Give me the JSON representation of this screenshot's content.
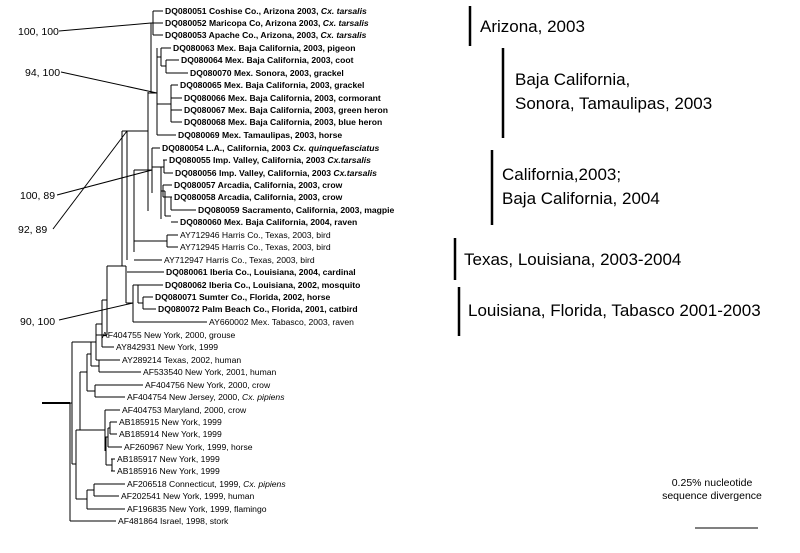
{
  "tips": [
    {
      "label": "DQ080051 Coshise Co., Arizona 2003,",
      "italic": " Cx. tarsalis",
      "bold": true
    },
    {
      "label": "DQ080052 Maricopa Co, Arizona 2003,",
      "italic": " Cx. tarsalis",
      "bold": true
    },
    {
      "label": "DQ080053 Apache Co., Arizona, 2003,",
      "italic": " Cx. tarsalis",
      "bold": true
    },
    {
      "label": "DQ080063 Mex. Baja California, 2003, pigeon",
      "italic": "",
      "bold": true
    },
    {
      "label": "DQ080064 Mex. Baja California, 2003, coot",
      "italic": "",
      "bold": true
    },
    {
      "label": "DQ080070 Mex. Sonora, 2003, grackel",
      "italic": "",
      "bold": true
    },
    {
      "label": "DQ080065 Mex. Baja California, 2003, grackel",
      "italic": "",
      "bold": true
    },
    {
      "label": "DQ080066 Mex. Baja California, 2003, cormorant",
      "italic": "",
      "bold": true
    },
    {
      "label": "DQ080067 Mex. Baja California, 2003, green heron",
      "italic": "",
      "bold": true
    },
    {
      "label": "DQ080068 Mex. Baja California, 2003, blue heron",
      "italic": "",
      "bold": true
    },
    {
      "label": "DQ080069 Mex. Tamaulipas, 2003, horse",
      "italic": "",
      "bold": true
    },
    {
      "label": "DQ080054 L.A., California, 2003",
      "italic": " Cx. quinquefasciatus",
      "bold": true
    },
    {
      "label": "DQ080055 Imp. Valley, California, 2003",
      "italic": " Cx.tarsalis",
      "bold": true
    },
    {
      "label": "DQ080056 Imp. Valley, California, 2003",
      "italic": " Cx.tarsalis",
      "bold": true
    },
    {
      "label": "DQ080057 Arcadia, California, 2003, crow",
      "italic": "",
      "bold": true
    },
    {
      "label": "DQ080058 Arcadia, California, 2003, crow",
      "italic": "",
      "bold": true
    },
    {
      "label": "DQ080059 Sacramento, California, 2003, magpie",
      "italic": "",
      "bold": true
    },
    {
      "label": "DQ080060 Mex. Baja California, 2004, raven",
      "italic": "",
      "bold": true
    },
    {
      "label": "AY712946 Harris Co., Texas, 2003, bird",
      "italic": "",
      "bold": false
    },
    {
      "label": "AY712945 Harris Co., Texas, 2003, bird",
      "italic": "",
      "bold": false
    },
    {
      "label": "AY712947 Harris Co., Texas, 2003, bird",
      "italic": "",
      "bold": false
    },
    {
      "label": "DQ080061 Iberia Co., Louisiana, 2004, cardinal",
      "italic": "",
      "bold": true
    },
    {
      "label": "DQ080062 Iberia Co., Louisiana, 2002, mosquito",
      "italic": "",
      "bold": true
    },
    {
      "label": "DQ080071 Sumter Co., Florida, 2002, horse",
      "italic": "",
      "bold": true
    },
    {
      "label": "DQ080072 Palm Beach Co., Florida, 2001, catbird",
      "italic": "",
      "bold": true
    },
    {
      "label": "AY660002 Mex. Tabasco, 2003, raven",
      "italic": "",
      "bold": false
    },
    {
      "label": "AF404755 New York, 2000, grouse",
      "italic": "",
      "bold": false
    },
    {
      "label": "AY842931 New York, 1999",
      "italic": "",
      "bold": false
    },
    {
      "label": "AY289214 Texas, 2002, human",
      "italic": "",
      "bold": false
    },
    {
      "label": "AF533540 New York, 2001, human",
      "italic": "",
      "bold": false
    },
    {
      "label": "AF404756 New York, 2000, crow",
      "italic": "",
      "bold": false
    },
    {
      "label": "AF404754 New Jersey, 2000,",
      "italic": " Cx. pipiens",
      "bold": false
    },
    {
      "label": "AF404753 Maryland, 2000, crow",
      "italic": "",
      "bold": false
    },
    {
      "label": "AB185915 New York, 1999",
      "italic": "",
      "bold": false
    },
    {
      "label": "AB185914 New York, 1999",
      "italic": "",
      "bold": false
    },
    {
      "label": "AF260967 New York, 1999, horse",
      "italic": "",
      "bold": false
    },
    {
      "label": "AB185917 New York, 1999",
      "italic": "",
      "bold": false
    },
    {
      "label": "AB185916 New York, 1999",
      "italic": "",
      "bold": false
    },
    {
      "label": "AF206518 Connecticut, 1999,",
      "italic": " Cx. pipiens",
      "bold": false
    },
    {
      "label": "AF202541 New York, 1999, human",
      "italic": "",
      "bold": false
    },
    {
      "label": "AF196835 New York, 1999, flamingo",
      "italic": "",
      "bold": false
    },
    {
      "label": "AF481864 Israel, 1998, stork",
      "italic": "",
      "bold": false
    }
  ],
  "node_labels": [
    "100, 100",
    "94, 100",
    "100, 89",
    "92, 89",
    "90, 100"
  ],
  "clade_labels": [
    {
      "lines": [
        "Arizona, 2003"
      ]
    },
    {
      "lines": [
        "Baja California,",
        "Sonora, Tamaulipas, 2003"
      ]
    },
    {
      "lines": [
        "California,2003;",
        "Baja California, 2004"
      ]
    },
    {
      "lines": [
        "Texas, Louisiana, 2003-2004"
      ]
    },
    {
      "lines": [
        "Louisiana, Florida, Tabasco 2001-2003"
      ]
    }
  ],
  "scale_bar": {
    "lines": [
      "0.25% nucleotide",
      "sequence divergence"
    ]
  }
}
